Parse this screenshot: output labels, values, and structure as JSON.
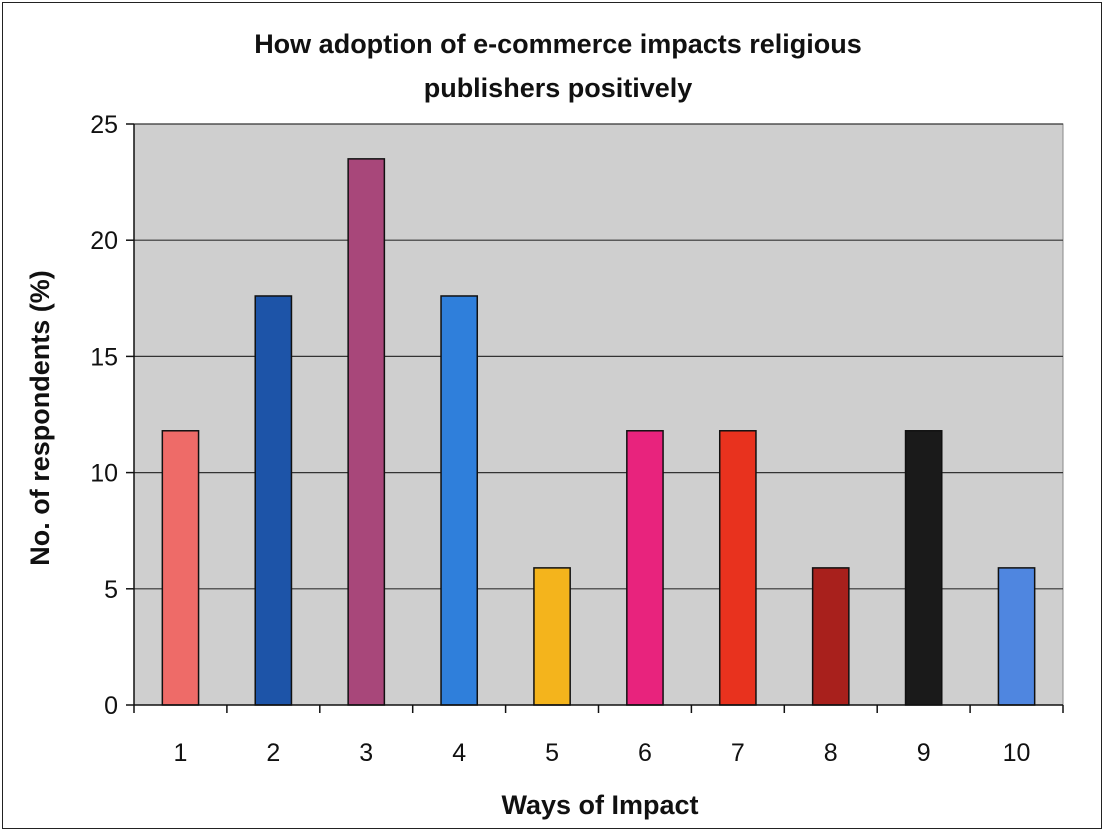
{
  "chart_data": {
    "type": "bar",
    "title_lines": [
      "How adoption of e-commerce impacts religious",
      "publishers positively"
    ],
    "xlabel": "Ways of Impact",
    "ylabel": "No. of respondents (%)",
    "categories": [
      "1",
      "2",
      "3",
      "4",
      "5",
      "6",
      "7",
      "8",
      "9",
      "10"
    ],
    "values": [
      11.8,
      17.6,
      23.5,
      17.6,
      5.9,
      11.8,
      11.8,
      5.9,
      11.8,
      5.9
    ],
    "bar_colors": [
      "#ee6b68",
      "#1d54a8",
      "#a8477a",
      "#2f7fdb",
      "#f4b41c",
      "#e8237d",
      "#e8321e",
      "#a8201c",
      "#1a1a1a",
      "#4f86e0"
    ],
    "ylim": [
      0,
      25
    ],
    "yticks": [
      "0",
      "5",
      "10",
      "15",
      "20",
      "25"
    ],
    "grid": true,
    "plot_background": "#cfcfcf",
    "legend": "none"
  }
}
